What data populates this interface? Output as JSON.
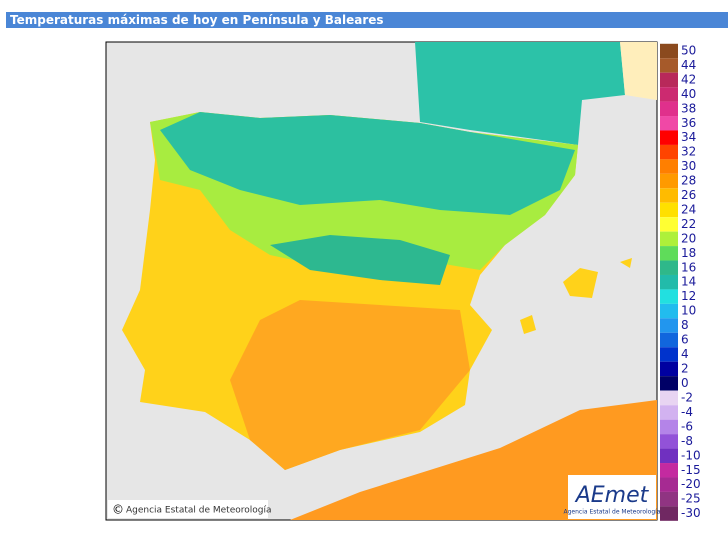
{
  "header": {
    "title": "Temperaturas máximas de hoy en Península y Baleares"
  },
  "legend": {
    "items": [
      {
        "value": 50,
        "color": "#8b4a1e"
      },
      {
        "value": 44,
        "color": "#a65a2a"
      },
      {
        "value": 42,
        "color": "#b8295a"
      },
      {
        "value": 40,
        "color": "#cc2a70"
      },
      {
        "value": 38,
        "color": "#e0308c"
      },
      {
        "value": 36,
        "color": "#f048a6"
      },
      {
        "value": 34,
        "color": "#ff0000"
      },
      {
        "value": 32,
        "color": "#ff4400"
      },
      {
        "value": 30,
        "color": "#ff7f00"
      },
      {
        "value": 28,
        "color": "#ff9a00"
      },
      {
        "value": 26,
        "color": "#ffbb00"
      },
      {
        "value": 24,
        "color": "#ffe000"
      },
      {
        "value": 22,
        "color": "#ffff33"
      },
      {
        "value": 20,
        "color": "#aef03a"
      },
      {
        "value": 18,
        "color": "#5fdc5a"
      },
      {
        "value": 16,
        "color": "#2fb88a"
      },
      {
        "value": 14,
        "color": "#22bbaa"
      },
      {
        "value": 12,
        "color": "#22e0e0"
      },
      {
        "value": 10,
        "color": "#22bcee"
      },
      {
        "value": 8,
        "color": "#2296ee"
      },
      {
        "value": 6,
        "color": "#1166dd"
      },
      {
        "value": 4,
        "color": "#0033cc"
      },
      {
        "value": 2,
        "color": "#0000a0"
      },
      {
        "value": 0,
        "color": "#000066"
      }
    ],
    "negative_items": [
      {
        "value": -2,
        "color": "#e8d4f2"
      },
      {
        "value": -4,
        "color": "#d2b2f0"
      },
      {
        "value": -6,
        "color": "#b484e8"
      },
      {
        "value": -8,
        "color": "#9252d8"
      },
      {
        "value": -10,
        "color": "#7030c0"
      },
      {
        "value": -15,
        "color": "#c42aa0"
      },
      {
        "value": -20,
        "color": "#a62a92"
      },
      {
        "value": -25,
        "color": "#903482"
      },
      {
        "value": -30,
        "color": "#702862"
      }
    ]
  },
  "credit": {
    "symbol": "©",
    "text": "Agencia Estatal de Meteorología"
  },
  "logo": {
    "name": "AEmet",
    "subtitle": "Agencia Estatal de Meteorología"
  }
}
